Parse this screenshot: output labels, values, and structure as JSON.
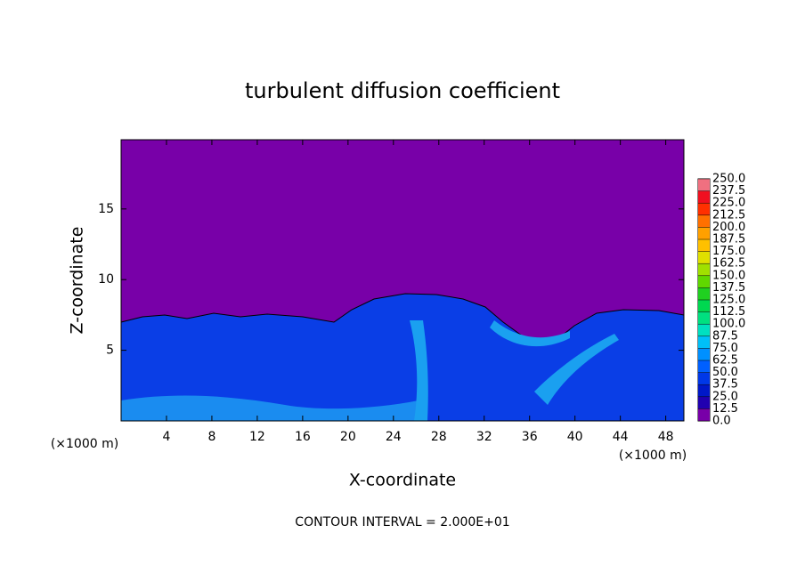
{
  "chart_data": {
    "type": "contour",
    "title": "turbulent diffusion coefficient",
    "x_label": "X-coordinate",
    "y_label": "Z-coordinate",
    "x_unit_left": "(×1000 m)",
    "x_unit_right": "(×1000 m)",
    "note": "CONTOUR INTERVAL = 2.000E+01",
    "xlim": [
      0,
      49.6
    ],
    "ylim": [
      0,
      19.9
    ],
    "xticks": [
      4,
      8,
      12,
      16,
      20,
      24,
      28,
      32,
      36,
      40,
      44,
      48
    ],
    "yticks": [
      5,
      10,
      15
    ],
    "colorbar": {
      "levels": [
        {
          "value": 0,
          "label": "0.0"
        },
        {
          "value": 12.5,
          "label": "12.5"
        },
        {
          "value": 25,
          "label": "25.0"
        },
        {
          "value": 37.5,
          "label": "37.5"
        },
        {
          "value": 50,
          "label": "50.0"
        },
        {
          "value": 62.5,
          "label": "62.5"
        },
        {
          "value": 75,
          "label": "75.0"
        },
        {
          "value": 87.5,
          "label": "87.5"
        },
        {
          "value": 100,
          "label": "100.0"
        },
        {
          "value": 112.5,
          "label": "112.5"
        },
        {
          "value": 125,
          "label": "125.0"
        },
        {
          "value": 137.5,
          "label": "137.5"
        },
        {
          "value": 150,
          "label": "150.0"
        },
        {
          "value": 162.5,
          "label": "162.5"
        },
        {
          "value": 175,
          "label": "175.0"
        },
        {
          "value": 187.5,
          "label": "187.5"
        },
        {
          "value": 200,
          "label": "200.0"
        },
        {
          "value": 212.5,
          "label": "212.5"
        },
        {
          "value": 225,
          "label": "225.0"
        },
        {
          "value": 237.5,
          "label": "237.5"
        },
        {
          "value": 250,
          "label": "250.0"
        }
      ],
      "colors": [
        "#7800a8",
        "#2000b0",
        "#0018c8",
        "#0038e8",
        "#0060ff",
        "#0090ff",
        "#00c0f8",
        "#00e0c0",
        "#00e080",
        "#00d850",
        "#20d020",
        "#60d800",
        "#a0e000",
        "#e0e000",
        "#ffc000",
        "#ffa000",
        "#ff7000",
        "#ff3000",
        "#f01020",
        "#f07080"
      ]
    }
  }
}
